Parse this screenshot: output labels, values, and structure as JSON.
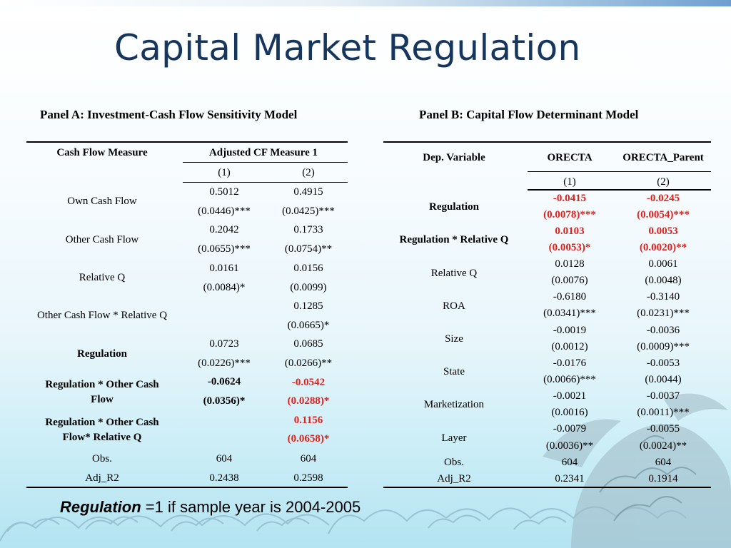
{
  "title": "Capital Market Regulation",
  "panel_a": {
    "title": "Panel A: Investment-Cash Flow Sensitivity Model",
    "col_header": "Cash Flow Measure",
    "group_header": "Adjusted CF Measure 1",
    "col1": "(1)",
    "col2": "(2)",
    "rows": [
      {
        "label": "Own Cash Flow",
        "v1": "0.5012",
        "v2": "0.4915",
        "s1": "(0.0446)***",
        "s2": "(0.0425)***"
      },
      {
        "label": "Other Cash Flow",
        "v1": "0.2042",
        "v2": "0.1733",
        "s1": "(0.0655)***",
        "s2": "(0.0754)**"
      },
      {
        "label": "Relative Q",
        "v1": "0.0161",
        "v2": "0.0156",
        "s1": "(0.0084)*",
        "s2": "(0.0099)"
      },
      {
        "label": "Other Cash Flow * Relative Q",
        "v1": "",
        "v2": "0.1285",
        "s1": "",
        "s2": "(0.0665)*"
      },
      {
        "label": "Regulation",
        "v1": "0.0723",
        "v2": "0.0685",
        "s1": "(0.0226)***",
        "s2": "(0.0266)**"
      },
      {
        "label": "Regulation * Other Cash Flow",
        "v1": "-0.0624",
        "v2": "-0.0542",
        "s1": "(0.0356)*",
        "s2": "(0.0288)*"
      },
      {
        "label": "Regulation * Other Cash Flow* Relative Q",
        "v1": "",
        "v2": "0.1156",
        "s1": "",
        "s2": "(0.0658)*"
      }
    ],
    "obs": {
      "label": "Obs.",
      "v1": "604",
      "v2": "604"
    },
    "adj": {
      "label": "Adj_R2",
      "v1": "0.2438",
      "v2": "0.2598"
    }
  },
  "panel_b": {
    "title": "Panel B: Capital Flow Determinant Model",
    "dep_header": "Dep. Variable",
    "c1_header": "ORECTA",
    "c2_header": "ORECTA_Parent",
    "col1": "(1)",
    "col2": "(2)",
    "rows": [
      {
        "label": "Regulation",
        "v1": "-0.0415",
        "v2": "-0.0245",
        "s1": "(0.0078)***",
        "s2": "(0.0054)***"
      },
      {
        "label": "Regulation * Relative Q",
        "v1": "0.0103",
        "v2": "0.0053",
        "s1": "(0.0053)*",
        "s2": "(0.0020)**"
      },
      {
        "label": "Relative Q",
        "v1": "0.0128",
        "v2": "0.0061",
        "s1": "(0.0076)",
        "s2": "(0.0048)"
      },
      {
        "label": "ROA",
        "v1": "-0.6180",
        "v2": "-0.3140",
        "s1": "(0.0341)***",
        "s2": "(0.0231)***"
      },
      {
        "label": "Size",
        "v1": "-0.0019",
        "v2": "-0.0036",
        "s1": "(0.0012)",
        "s2": "(0.0009)***"
      },
      {
        "label": "State",
        "v1": "-0.0176",
        "v2": "-0.0053",
        "s1": "(0.0066)***",
        "s2": "(0.0044)"
      },
      {
        "label": "Marketization",
        "v1": "-0.0021",
        "v2": "-0.0037",
        "s1": "(0.0016)",
        "s2": "(0.0011)***"
      },
      {
        "label": "Layer",
        "v1": "-0.0079",
        "v2": "-0.0055",
        "s1": "(0.0036)**",
        "s2": "(0.0024)**"
      }
    ],
    "obs": {
      "label": "Obs.",
      "v1": "604",
      "v2": "604"
    },
    "adj": {
      "label": "Adj_R2",
      "v1": "0.2341",
      "v2": "0.1914"
    }
  },
  "footnote": {
    "emph": "Regulation",
    "rest": " =1 if sample year is 2004-2005"
  },
  "colors": {
    "title": "#17365d",
    "highlight": "#e0201b",
    "accent_line": "#6e9ed0"
  }
}
